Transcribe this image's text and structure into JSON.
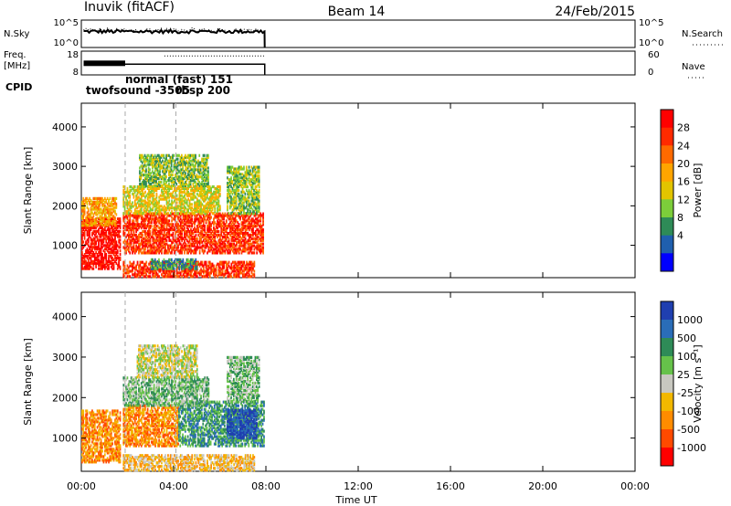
{
  "header": {
    "station": "Inuvik (fitACF)",
    "beam": "Beam 14",
    "date": "24/Feb/2015"
  },
  "top_panels": {
    "nsky_label": "N.Sky",
    "nsky_ticks": [
      "10^5",
      "10^0"
    ],
    "nsearch_label": "N.Search",
    "nsearch_ticks": [
      "10^5",
      "10^0"
    ],
    "freq_label_1": "Freq.",
    "freq_label_2": "[MHz]",
    "freq_ticks": [
      "18",
      "8"
    ],
    "nave_label": "Nave",
    "nave_ticks": [
      "60",
      "0"
    ],
    "cpid_label": "CPID",
    "cpid_annotations": [
      {
        "text": "twofsound -3505",
        "time": 0.2
      },
      {
        "text": "normal (fast) 151",
        "time": 1.9
      },
      {
        "text": "rbsp 200",
        "time": 4.1
      }
    ]
  },
  "x_axis": {
    "ticks": [
      "00:00",
      "04:00",
      "08:00",
      "12:00",
      "16:00",
      "20:00",
      "00:00"
    ],
    "label": "Time UT",
    "range_hours": [
      0,
      24
    ]
  },
  "chart_data": [
    {
      "type": "heatmap",
      "name": "power",
      "ylabel": "Slant Range [km]",
      "ylim": [
        180,
        4600
      ],
      "yticks": [
        1000,
        2000,
        3000,
        4000
      ],
      "xlim_hours": [
        0,
        24
      ],
      "colorbar": {
        "label": "Power [dB]",
        "ticks": [
          "28",
          "24",
          "20",
          "16",
          "12",
          "8",
          "4"
        ],
        "colors": [
          "#ff0000",
          "#ff2a00",
          "#ff6a00",
          "#ffa500",
          "#e2c400",
          "#7ccd3a",
          "#2e8b57",
          "#1f5fae",
          "#0000ff"
        ]
      },
      "regions": [
        {
          "t0": 0.0,
          "t1": 1.7,
          "r0": 400,
          "r1": 1700,
          "level": 0
        },
        {
          "t0": 1.8,
          "t1": 7.9,
          "r0": 800,
          "r1": 1800,
          "level": 1
        },
        {
          "t0": 1.8,
          "t1": 6.0,
          "r0": 1800,
          "r1": 2500,
          "level": 4
        },
        {
          "t0": 2.5,
          "t1": 5.5,
          "r0": 2500,
          "r1": 3300,
          "level": 5
        },
        {
          "t0": 6.3,
          "t1": 7.7,
          "r0": 1800,
          "r1": 3000,
          "level": 5
        },
        {
          "t0": 0.0,
          "t1": 1.5,
          "r0": 1500,
          "r1": 2200,
          "level": 3
        },
        {
          "t0": 1.8,
          "t1": 7.5,
          "r0": 200,
          "r1": 600,
          "level": 1
        },
        {
          "t0": 3.0,
          "t1": 5.0,
          "r0": 400,
          "r1": 650,
          "level": 6
        }
      ]
    },
    {
      "type": "heatmap",
      "name": "velocity",
      "ylabel": "Slant Range [km]",
      "ylim": [
        180,
        4600
      ],
      "yticks": [
        1000,
        2000,
        3000,
        4000
      ],
      "xlim_hours": [
        0,
        24
      ],
      "colorbar": {
        "label": "Velocity [m s⁻¹]",
        "ticks": [
          "1000",
          "500",
          "100",
          "25",
          "-25",
          "-100",
          "-500",
          "-1000"
        ],
        "colors": [
          "#1f3fb0",
          "#2a6db8",
          "#2e8b57",
          "#66c24a",
          "#c8c8c0",
          "#f2b800",
          "#ff8c00",
          "#ff4a00",
          "#ff0000"
        ]
      },
      "regions": [
        {
          "t0": 0.0,
          "t1": 1.7,
          "r0": 400,
          "r1": 1700,
          "level": 6
        },
        {
          "t0": 1.8,
          "t1": 4.2,
          "r0": 800,
          "r1": 1800,
          "level": 6
        },
        {
          "t0": 4.2,
          "t1": 7.9,
          "r0": 800,
          "r1": 1900,
          "level": 2
        },
        {
          "t0": 6.3,
          "t1": 7.6,
          "r0": 1000,
          "r1": 1700,
          "level": 0
        },
        {
          "t0": 1.8,
          "t1": 5.5,
          "r0": 1800,
          "r1": 2500,
          "level": 3
        },
        {
          "t0": 2.4,
          "t1": 5.0,
          "r0": 2500,
          "r1": 3300,
          "level": 4
        },
        {
          "t0": 6.3,
          "t1": 7.7,
          "r0": 1900,
          "r1": 3000,
          "level": 3
        },
        {
          "t0": 1.8,
          "t1": 7.5,
          "r0": 200,
          "r1": 600,
          "level": 5
        }
      ]
    }
  ],
  "timeseries": {
    "nsky": {
      "t0": 0.1,
      "t1": 7.95,
      "level": 0.55
    },
    "freq": {
      "t0": 0.1,
      "t1": 7.95,
      "level": 0.45
    },
    "nave": {
      "t0": 3.6,
      "t1": 7.95,
      "level": 0.8
    }
  }
}
